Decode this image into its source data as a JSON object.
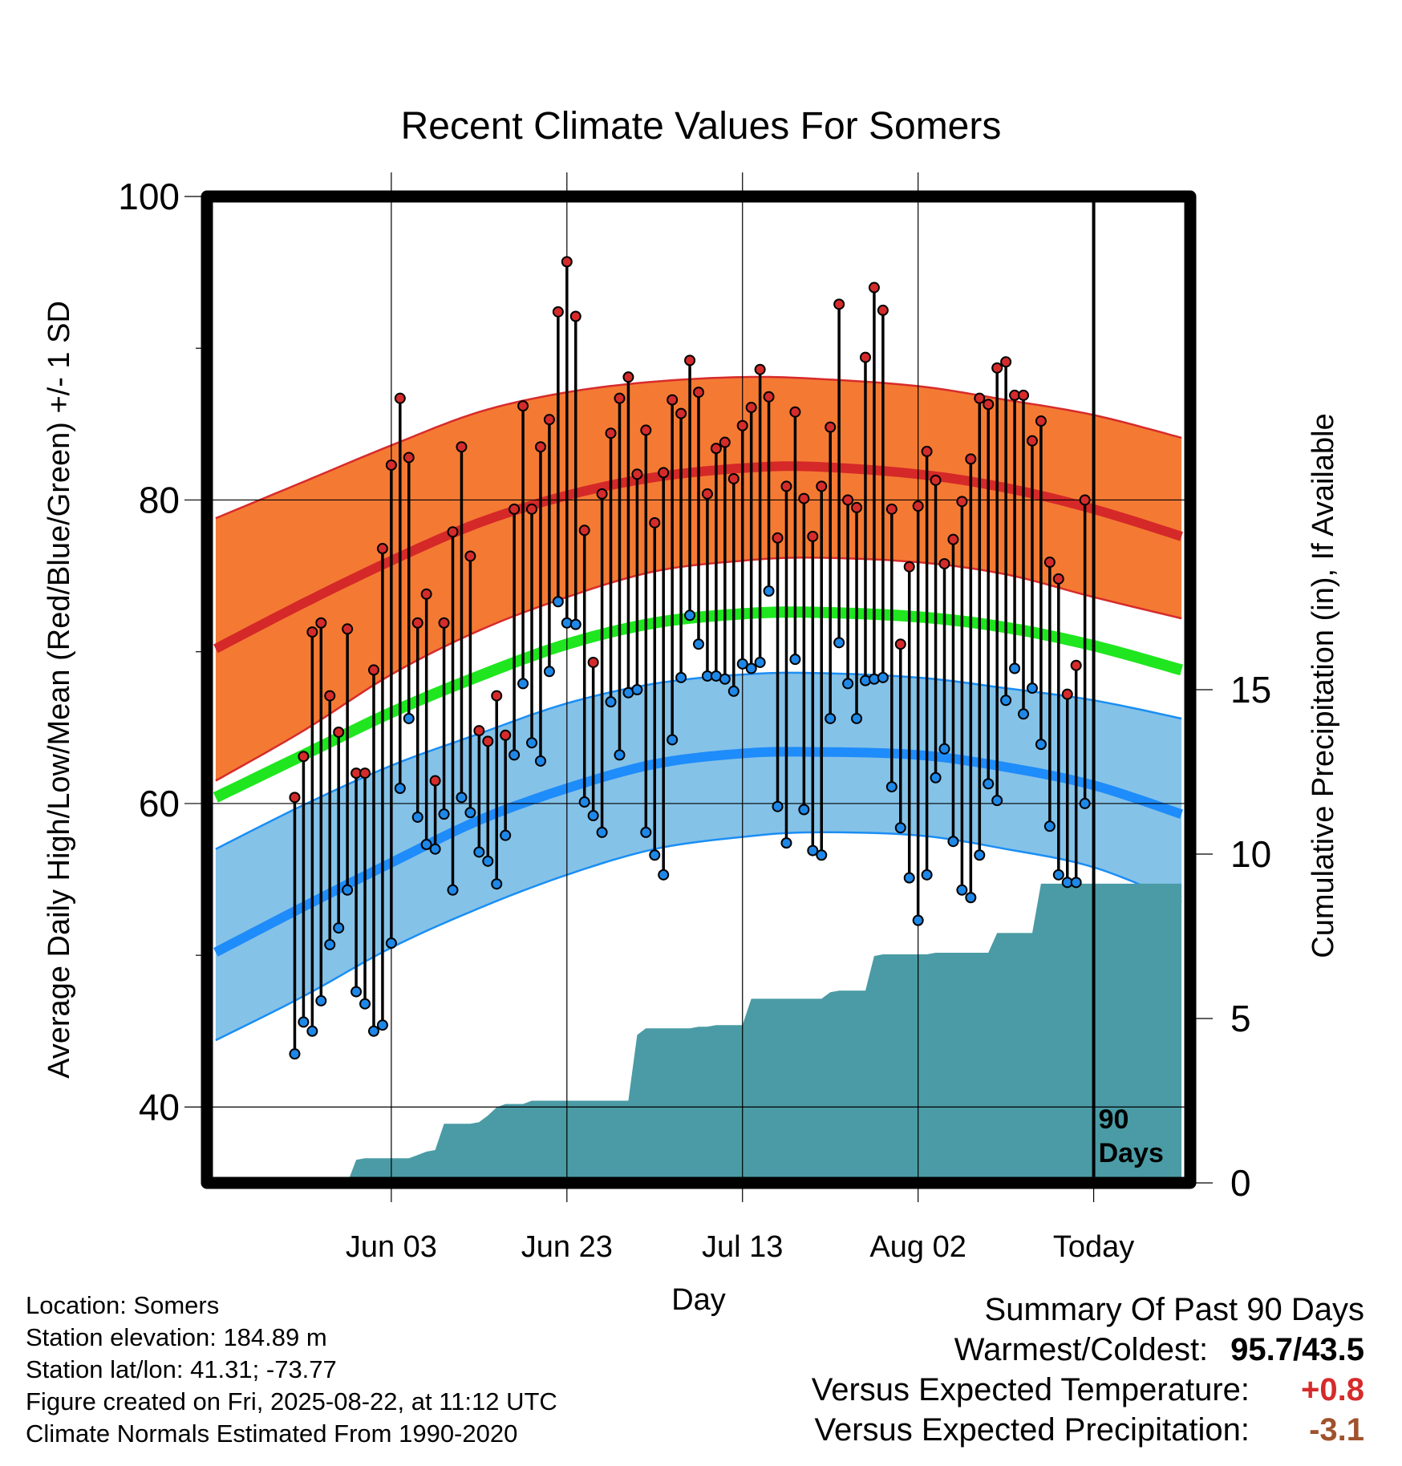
{
  "title": "Recent Climate Values For Somers",
  "chart_data": {
    "type": "line",
    "title": "Recent Climate Values For Somers",
    "xlabel": "Day",
    "ylabel": "Average Daily High/Low/Mean (Red/Blue/Green) +/- 1 SD",
    "y2label": "Cumulative Precipitation (in), If Available",
    "x_tick_labels": [
      "Jun 03",
      "Jun 23",
      "Jul 13",
      "Aug 02",
      "Today"
    ],
    "x_tick_days": [
      10,
      30,
      50,
      70,
      90
    ],
    "xlim": [
      -11,
      101
    ],
    "ylim": [
      35,
      100
    ],
    "y_ticks": [
      40,
      60,
      80,
      100
    ],
    "y_minor_ticks": [
      50,
      70,
      90
    ],
    "y2lim": [
      0,
      30
    ],
    "y2_ticks": [
      0,
      5,
      10,
      15
    ],
    "today_label": "90 Days",
    "grid": true,
    "colors": {
      "high_band": "#f47a33",
      "high_band_edge": "#d72b2b",
      "high_mean": "#d52828",
      "low_band": "#85c2e8",
      "low_band_edge": "#1a8ef5",
      "low_mean": "#1e8cfa",
      "mean": "#1fe61f",
      "precip": "#4a9ba5",
      "high_marker": "#d52b2b",
      "low_marker": "#1e88e8"
    },
    "normal_days": [
      -10,
      0,
      10,
      20,
      30,
      40,
      50,
      58,
      70,
      80,
      90,
      100
    ],
    "normal_high": [
      70.2,
      73.2,
      76.0,
      78.5,
      80.3,
      81.5,
      82.1,
      82.2,
      81.7,
      80.8,
      79.4,
      77.6
    ],
    "normal_high_sd_upper": [
      78.8,
      81.2,
      83.6,
      85.8,
      87.1,
      87.8,
      88.1,
      88.0,
      87.5,
      86.6,
      85.6,
      84.1
    ],
    "normal_high_sd_lower": [
      61.5,
      64.8,
      68.5,
      71.4,
      73.6,
      75.3,
      76.0,
      76.2,
      75.9,
      75.1,
      73.6,
      72.2
    ],
    "normal_mean": [
      60.4,
      63.2,
      66.0,
      68.4,
      70.5,
      71.9,
      72.5,
      72.6,
      72.3,
      71.6,
      70.4,
      68.8
    ],
    "normal_low": [
      50.2,
      53.2,
      56.1,
      58.9,
      61.0,
      62.6,
      63.3,
      63.4,
      63.2,
      62.4,
      61.2,
      59.3
    ],
    "normal_low_sd_upper": [
      57.0,
      59.9,
      62.5,
      64.6,
      66.6,
      67.9,
      68.5,
      68.6,
      68.3,
      67.6,
      66.8,
      65.6
    ],
    "normal_low_sd_lower": [
      44.4,
      47.3,
      50.5,
      53.1,
      55.3,
      57.0,
      57.8,
      58.1,
      57.9,
      57.0,
      55.8,
      53.5
    ],
    "daily_days": [
      0,
      1,
      2,
      3,
      4,
      5,
      6,
      7,
      8,
      9,
      10,
      11,
      12,
      13,
      14,
      15,
      16,
      17,
      18,
      19,
      20,
      21,
      22,
      23,
      24,
      25,
      26,
      27,
      28,
      29,
      30,
      31,
      32,
      33,
      34,
      35,
      36,
      37,
      38,
      39,
      40,
      41,
      42,
      43,
      44,
      45,
      46,
      47,
      48,
      49,
      50,
      51,
      52,
      53,
      54,
      55,
      56,
      57,
      58,
      59,
      60,
      61,
      62,
      63,
      64,
      65,
      66,
      67,
      68,
      69,
      70,
      71,
      72,
      73,
      74,
      75,
      76,
      77,
      78,
      79,
      80,
      81,
      82,
      83,
      84,
      85,
      86,
      87,
      88,
      89
    ],
    "daily_high": [
      63.1,
      71.3,
      71.9,
      67.1,
      64.7,
      71.5,
      62.0,
      62.0,
      68.8,
      76.8,
      82.3,
      86.7,
      82.8,
      71.9,
      73.8,
      61.5,
      71.9,
      77.9,
      83.5,
      76.3,
      64.8,
      64.1,
      67.1,
      64.5,
      79.4,
      86.2,
      79.4,
      83.5,
      85.3,
      92.4,
      95.7,
      92.1,
      78.0,
      69.3,
      80.4,
      84.4,
      86.7,
      88.1,
      81.7,
      84.6,
      78.5,
      81.8,
      86.6,
      85.7,
      89.2,
      87.1,
      80.4,
      83.4,
      83.8,
      81.4,
      84.9,
      86.1,
      88.6,
      86.8,
      77.5,
      80.9,
      85.8,
      80.1,
      77.6,
      80.9,
      84.8,
      92.9,
      80.0,
      79.5,
      89.4,
      94.0,
      92.5,
      79.4,
      70.5,
      75.6,
      79.6,
      83.2,
      81.3,
      75.8,
      77.4,
      79.9,
      82.7,
      86.7,
      86.3,
      88.7,
      89.1,
      86.9,
      86.9,
      83.9,
      85.2,
      75.9,
      74.8,
      67.2,
      69.1,
      80.0
    ],
    "daily_low": [
      45.6,
      45.0,
      47.0,
      50.7,
      51.8,
      54.3,
      47.6,
      46.8,
      45.0,
      45.4,
      50.8,
      61.0,
      65.6,
      59.1,
      57.3,
      57.0,
      59.3,
      54.3,
      60.4,
      59.4,
      56.8,
      56.2,
      54.7,
      57.9,
      63.2,
      67.9,
      64.0,
      62.8,
      68.7,
      73.3,
      71.9,
      71.8,
      60.1,
      59.2,
      58.1,
      66.7,
      63.2,
      67.3,
      67.5,
      58.1,
      56.6,
      55.3,
      64.2,
      68.3,
      72.4,
      70.5,
      68.4,
      68.4,
      68.2,
      67.4,
      69.2,
      68.9,
      69.3,
      74.0,
      59.8,
      57.4,
      69.5,
      59.6,
      56.9,
      56.6,
      65.6,
      70.6,
      67.9,
      65.6,
      68.1,
      68.2,
      68.3,
      61.1,
      58.4,
      55.1,
      52.3,
      55.3,
      61.7,
      63.6,
      57.5,
      54.3,
      53.8,
      56.6,
      61.3,
      60.2,
      66.8,
      68.9,
      65.9,
      67.6,
      63.9,
      58.5,
      55.3,
      54.8,
      54.8,
      60.0
    ],
    "first_low_day": -1,
    "first_low_value": 43.5,
    "first_high_day": -1,
    "first_high_value": 60.4,
    "precip_days": [
      -11,
      5,
      6,
      7,
      8,
      9,
      10,
      11,
      12,
      13,
      14,
      15,
      16,
      17,
      18,
      19,
      20,
      21,
      22,
      23,
      24,
      25,
      26,
      27,
      28,
      29,
      30,
      31,
      32,
      33,
      34,
      35,
      36,
      37,
      38,
      39,
      40,
      41,
      42,
      43,
      44,
      45,
      46,
      47,
      48,
      49,
      50,
      51,
      52,
      53,
      54,
      55,
      56,
      57,
      58,
      59,
      60,
      61,
      62,
      63,
      64,
      65,
      66,
      67,
      68,
      69,
      70,
      71,
      72,
      73,
      74,
      75,
      76,
      77,
      78,
      79,
      80,
      81,
      82,
      83,
      84,
      85,
      86,
      87,
      88,
      89,
      90,
      100
    ],
    "precip_cum": [
      0,
      0,
      0.7,
      0.75,
      0.75,
      0.75,
      0.75,
      0.75,
      0.75,
      0.85,
      0.95,
      1.0,
      1.8,
      1.8,
      1.8,
      1.8,
      1.85,
      2.05,
      2.3,
      2.4,
      2.4,
      2.4,
      2.5,
      2.5,
      2.5,
      2.5,
      2.5,
      2.5,
      2.5,
      2.5,
      2.5,
      2.5,
      2.5,
      2.5,
      4.5,
      4.7,
      4.7,
      4.7,
      4.7,
      4.7,
      4.7,
      4.75,
      4.75,
      4.8,
      4.8,
      4.8,
      4.8,
      5.6,
      5.6,
      5.6,
      5.6,
      5.6,
      5.6,
      5.6,
      5.6,
      5.6,
      5.8,
      5.85,
      5.85,
      5.85,
      5.85,
      6.9,
      6.95,
      6.95,
      6.95,
      6.95,
      6.95,
      6.95,
      7.0,
      7.0,
      7.0,
      7.0,
      7.0,
      7.0,
      7.0,
      7.6,
      7.6,
      7.6,
      7.6,
      7.6,
      9.1,
      9.1,
      9.1,
      9.1,
      9.1,
      9.1,
      9.1,
      9.1
    ]
  },
  "info": {
    "location": "Location: Somers",
    "elevation": "Station elevation: 184.89 m",
    "latlon": "Station lat/lon: 41.31; -73.77",
    "created": "Figure created on Fri, 2025-08-22, at 11:12 UTC",
    "normals": "Climate Normals Estimated From 1990-2020"
  },
  "summary": {
    "heading": "Summary Of Past 90 Days",
    "warmest_label": "Warmest/Coldest:",
    "warmest_value": "95.7/43.5",
    "temp_label": "Versus Expected Temperature:",
    "temp_value": "+0.8",
    "temp_color": "#d62b2b",
    "precip_label": "Versus Expected Precipitation:",
    "precip_value": "-3.1",
    "precip_color": "#a0522d"
  }
}
